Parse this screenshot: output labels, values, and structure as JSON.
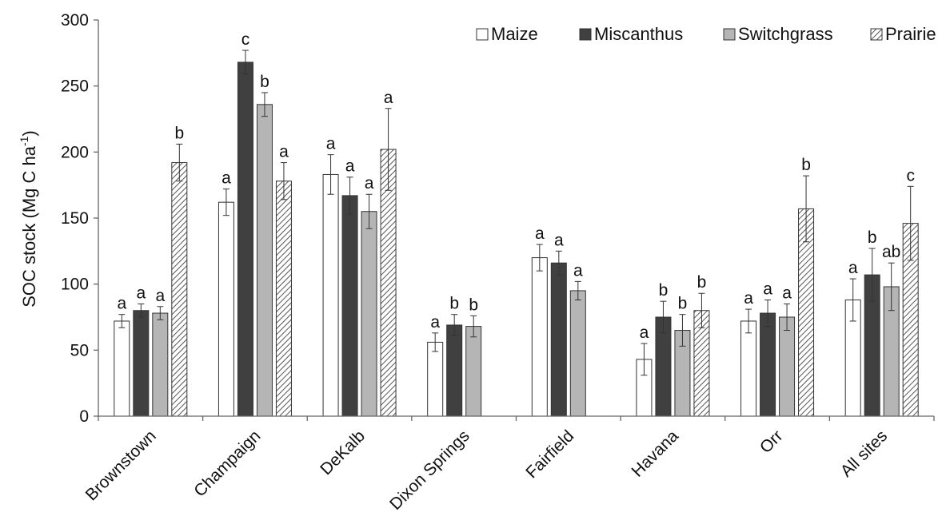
{
  "chart_data": {
    "type": "bar",
    "title": "",
    "ylabel": {
      "main": "SOC stock (Mg C ha",
      "sup": "-1",
      "close": ")"
    },
    "xlabel": "",
    "ylim": [
      0,
      300
    ],
    "yticks": [
      0,
      50,
      100,
      150,
      200,
      250,
      300
    ],
    "legend_position": "top-right",
    "categories": [
      "Brownstown",
      "Champaign",
      "DeKalb",
      "Dixon Springs",
      "Fairfield",
      "Havana",
      "Orr",
      "All sites"
    ],
    "series": [
      {
        "name": "Maize",
        "fill": "#ffffff",
        "pattern": "none",
        "values": [
          72,
          162,
          183,
          56,
          120,
          43,
          72,
          88
        ],
        "errors": [
          5,
          10,
          15,
          7,
          10,
          12,
          9,
          16
        ],
        "labels": [
          "a",
          "a",
          "a",
          "a",
          "a",
          "a",
          "a",
          "a"
        ]
      },
      {
        "name": "Miscanthus",
        "fill": "#404040",
        "pattern": "none",
        "values": [
          80,
          268,
          167,
          69,
          116,
          75,
          78,
          107
        ],
        "errors": [
          5,
          9,
          14,
          8,
          9,
          12,
          10,
          20
        ],
        "labels": [
          "a",
          "c",
          "a",
          "b",
          "a",
          "b",
          "a",
          "b"
        ]
      },
      {
        "name": "Switchgrass",
        "fill": "#b5b5b5",
        "pattern": "none",
        "values": [
          78,
          236,
          155,
          68,
          95,
          65,
          75,
          98
        ],
        "errors": [
          5,
          9,
          13,
          8,
          7,
          12,
          10,
          18
        ],
        "labels": [
          "a",
          "b",
          "a",
          "b",
          "a",
          "b",
          "a",
          "ab"
        ]
      },
      {
        "name": "Prairie",
        "fill": "#ffffff",
        "pattern": "hatch",
        "values": [
          192,
          178,
          202,
          null,
          null,
          80,
          157,
          146
        ],
        "errors": [
          14,
          14,
          31,
          null,
          null,
          13,
          25,
          28
        ],
        "labels": [
          "b",
          "a",
          "a",
          "",
          "",
          "b",
          "b",
          "c"
        ]
      }
    ]
  }
}
